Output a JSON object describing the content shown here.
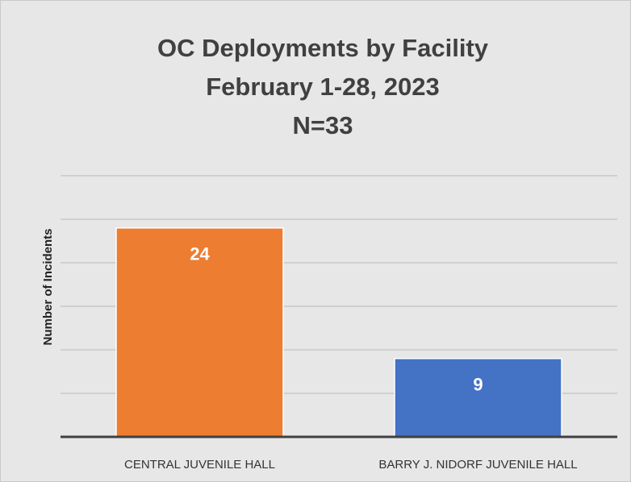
{
  "chart_data": {
    "type": "bar",
    "title": [
      "OC Deployments by Facility",
      "February 1-28, 2023",
      "N=33"
    ],
    "y_label": "Number of Incidents",
    "categories": [
      "CENTRAL JUVENILE HALL",
      "BARRY J. NIDORF JUVENILE HALL"
    ],
    "values": [
      24,
      9
    ],
    "colors": [
      "#ed7d31",
      "#4472c4"
    ],
    "ylim": [
      0,
      30
    ],
    "yticks": [
      0,
      5,
      10,
      15,
      20,
      25,
      30
    ],
    "show_ytick_labels": false,
    "grid": true
  }
}
